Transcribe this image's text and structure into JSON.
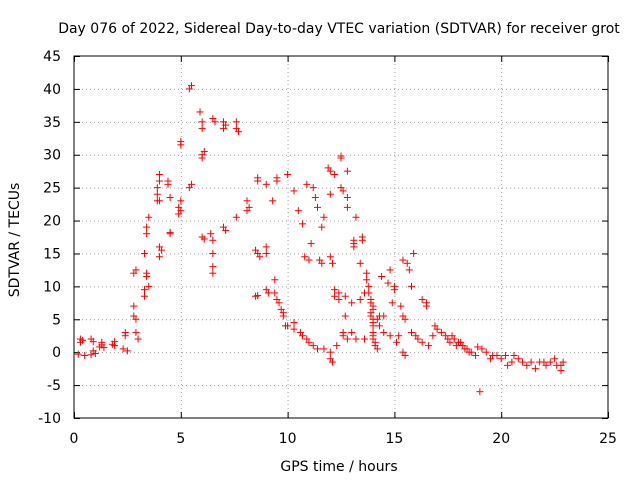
{
  "chart_data": {
    "type": "scatter",
    "title": "Day 076 of 2022, Sidereal Day-to-day VTEC variation (SDTVAR) for receiver grot",
    "xlabel": "GPS time / hours",
    "ylabel": "SDTVAR / TECUs",
    "xlim": [
      0,
      25
    ],
    "ylim": [
      -10,
      45
    ],
    "xticks": [
      0,
      5,
      10,
      15,
      20,
      25
    ],
    "yticks": [
      -10,
      -5,
      0,
      5,
      10,
      15,
      20,
      25,
      30,
      35,
      40,
      45
    ],
    "grid": true,
    "marker": "+",
    "color": "#ff0000",
    "series": [
      {
        "name": "SDTVAR",
        "points": [
          [
            0.2,
            -0.3
          ],
          [
            0.3,
            2.0
          ],
          [
            0.3,
            1.5
          ],
          [
            0.4,
            1.8
          ],
          [
            0.5,
            -0.5
          ],
          [
            0.8,
            -0.4
          ],
          [
            0.8,
            2.0
          ],
          [
            0.9,
            1.6
          ],
          [
            0.9,
            0.2
          ],
          [
            1.0,
            -0.2
          ],
          [
            1.2,
            0.8
          ],
          [
            1.3,
            1.5
          ],
          [
            1.3,
            1.1
          ],
          [
            1.4,
            0.7
          ],
          [
            1.8,
            1.2
          ],
          [
            1.9,
            1.6
          ],
          [
            1.9,
            1.0
          ],
          [
            2.3,
            0.5
          ],
          [
            2.4,
            2.5
          ],
          [
            2.4,
            3.0
          ],
          [
            2.5,
            0.2
          ],
          [
            2.8,
            5.5
          ],
          [
            2.8,
            7.0
          ],
          [
            2.8,
            12.0
          ],
          [
            2.9,
            12.5
          ],
          [
            2.9,
            5.0
          ],
          [
            2.9,
            3.0
          ],
          [
            3.0,
            2.0
          ],
          [
            3.3,
            8.5
          ],
          [
            3.3,
            9.5
          ],
          [
            3.4,
            11.5
          ],
          [
            3.4,
            12.0
          ],
          [
            3.4,
            18.0
          ],
          [
            3.4,
            19.0
          ],
          [
            3.5,
            20.5
          ],
          [
            3.5,
            10.0
          ],
          [
            3.3,
            15.0
          ],
          [
            3.9,
            23.0
          ],
          [
            3.9,
            24.0
          ],
          [
            3.9,
            25.0
          ],
          [
            4.0,
            26.0
          ],
          [
            4.0,
            27.0
          ],
          [
            4.0,
            23.0
          ],
          [
            4.0,
            14.5
          ],
          [
            4.0,
            16.0
          ],
          [
            4.1,
            15.5
          ],
          [
            4.4,
            26.0
          ],
          [
            4.4,
            25.5
          ],
          [
            4.5,
            23.5
          ],
          [
            4.5,
            18.0
          ],
          [
            4.5,
            18.2
          ],
          [
            4.9,
            22.0
          ],
          [
            4.9,
            21.0
          ],
          [
            5.0,
            21.5
          ],
          [
            5.0,
            23.0
          ],
          [
            5.0,
            31.5
          ],
          [
            5.0,
            32.0
          ],
          [
            5.4,
            40.0
          ],
          [
            5.5,
            40.5
          ],
          [
            5.4,
            25.0
          ],
          [
            5.5,
            25.5
          ],
          [
            5.9,
            36.5
          ],
          [
            6.0,
            35.0
          ],
          [
            6.0,
            34.0
          ],
          [
            6.0,
            30.0
          ],
          [
            6.0,
            29.5
          ],
          [
            6.1,
            30.5
          ],
          [
            6.0,
            17.5
          ],
          [
            6.1,
            17.2
          ],
          [
            6.5,
            35.5
          ],
          [
            6.6,
            35.0
          ],
          [
            6.4,
            18.0
          ],
          [
            6.5,
            17.0
          ],
          [
            6.5,
            15.0
          ],
          [
            6.5,
            13.0
          ],
          [
            6.5,
            12.0
          ],
          [
            7.0,
            35.0
          ],
          [
            7.0,
            34.0
          ],
          [
            7.1,
            34.5
          ],
          [
            7.0,
            19.0
          ],
          [
            7.1,
            18.5
          ],
          [
            7.6,
            35.0
          ],
          [
            7.6,
            34.0
          ],
          [
            7.7,
            33.5
          ],
          [
            7.6,
            20.5
          ],
          [
            8.1,
            23.0
          ],
          [
            8.2,
            22.0
          ],
          [
            8.1,
            21.5
          ],
          [
            8.6,
            26.5
          ],
          [
            8.6,
            26.0
          ],
          [
            8.5,
            15.5
          ],
          [
            8.6,
            15.0
          ],
          [
            8.7,
            14.5
          ],
          [
            8.5,
            8.5
          ],
          [
            8.6,
            8.6
          ],
          [
            9.0,
            25.5
          ],
          [
            9.0,
            15.0
          ],
          [
            9.0,
            16.0
          ],
          [
            9.0,
            9.5
          ],
          [
            9.1,
            9.0
          ],
          [
            9.3,
            23.0
          ],
          [
            9.4,
            11.0
          ],
          [
            9.4,
            9.0
          ],
          [
            9.5,
            26.0
          ],
          [
            9.5,
            26.5
          ],
          [
            9.5,
            8.0
          ],
          [
            9.6,
            7.5
          ],
          [
            9.7,
            6.5
          ],
          [
            9.8,
            6.0
          ],
          [
            9.8,
            5.5
          ],
          [
            9.9,
            4.0
          ],
          [
            10.0,
            27.0
          ],
          [
            10.0,
            4.0
          ],
          [
            10.3,
            24.5
          ],
          [
            10.3,
            3.5
          ],
          [
            10.3,
            4.5
          ],
          [
            10.5,
            21.5
          ],
          [
            10.6,
            3.0
          ],
          [
            10.7,
            2.5
          ],
          [
            10.7,
            19.5
          ],
          [
            10.8,
            14.5
          ],
          [
            10.9,
            2.0
          ],
          [
            10.9,
            25.5
          ],
          [
            11.0,
            14.0
          ],
          [
            11.0,
            1.5
          ],
          [
            11.1,
            16.5
          ],
          [
            11.2,
            25.0
          ],
          [
            11.2,
            1.0
          ],
          [
            11.3,
            23.5
          ],
          [
            11.4,
            22.0
          ],
          [
            11.4,
            0.5
          ],
          [
            11.5,
            14.0
          ],
          [
            11.6,
            13.5
          ],
          [
            11.6,
            19.0
          ],
          [
            11.7,
            20.5
          ],
          [
            11.7,
            0.5
          ],
          [
            11.9,
            28.0
          ],
          [
            12.0,
            24.0
          ],
          [
            12.0,
            27.5
          ],
          [
            12.0,
            14.5
          ],
          [
            12.1,
            13.5
          ],
          [
            12.0,
            0.0
          ],
          [
            12.0,
            -1.0
          ],
          [
            12.1,
            -1.5
          ],
          [
            12.2,
            9.5
          ],
          [
            12.2,
            27.0
          ],
          [
            12.2,
            8.5
          ],
          [
            12.3,
            1.0
          ],
          [
            12.4,
            8.0
          ],
          [
            12.4,
            9.0
          ],
          [
            12.5,
            29.5
          ],
          [
            12.5,
            29.8
          ],
          [
            12.5,
            25.0
          ],
          [
            12.6,
            24.5
          ],
          [
            12.6,
            3.0
          ],
          [
            12.6,
            2.5
          ],
          [
            12.7,
            5.5
          ],
          [
            12.7,
            8.5
          ],
          [
            12.8,
            27.5
          ],
          [
            12.8,
            22.0
          ],
          [
            12.8,
            23.5
          ],
          [
            12.8,
            2.0
          ],
          [
            13.0,
            7.5
          ],
          [
            13.0,
            3.0
          ],
          [
            13.1,
            17.0
          ],
          [
            13.1,
            16.5
          ],
          [
            13.1,
            16.0
          ],
          [
            13.2,
            20.5
          ],
          [
            13.2,
            2.0
          ],
          [
            13.4,
            13.5
          ],
          [
            13.4,
            8.0
          ],
          [
            13.5,
            17.0
          ],
          [
            13.5,
            17.5
          ],
          [
            13.6,
            9.0
          ],
          [
            13.6,
            2.0
          ],
          [
            13.7,
            12.0
          ],
          [
            13.7,
            11.0
          ],
          [
            13.8,
            10.0
          ],
          [
            13.8,
            9.0
          ],
          [
            13.9,
            8.0
          ],
          [
            13.9,
            7.5
          ],
          [
            13.9,
            6.0
          ],
          [
            13.9,
            5.5
          ],
          [
            14.0,
            7.0
          ],
          [
            14.0,
            6.5
          ],
          [
            14.0,
            5.0
          ],
          [
            14.0,
            4.5
          ],
          [
            14.0,
            4.0
          ],
          [
            14.0,
            3.0
          ],
          [
            14.0,
            2.5
          ],
          [
            14.0,
            2.0
          ],
          [
            14.1,
            1.5
          ],
          [
            14.1,
            1.0
          ],
          [
            14.2,
            0.5
          ],
          [
            14.2,
            5.0
          ],
          [
            14.3,
            4.0
          ],
          [
            14.3,
            5.5
          ],
          [
            14.4,
            11.5
          ],
          [
            14.5,
            3.0
          ],
          [
            14.5,
            5.5
          ],
          [
            14.7,
            10.5
          ],
          [
            14.8,
            12.5
          ],
          [
            14.8,
            2.5
          ],
          [
            14.9,
            7.5
          ],
          [
            15.0,
            10.0
          ],
          [
            15.0,
            9.5
          ],
          [
            15.1,
            1.5
          ],
          [
            15.2,
            2.5
          ],
          [
            15.3,
            7.0
          ],
          [
            15.4,
            5.5
          ],
          [
            15.5,
            5.0
          ],
          [
            15.4,
            14.0
          ],
          [
            15.4,
            0.0
          ],
          [
            15.5,
            -0.5
          ],
          [
            15.6,
            13.5
          ],
          [
            15.7,
            12.5
          ],
          [
            15.8,
            10.0
          ],
          [
            15.8,
            3.0
          ],
          [
            15.9,
            15.0
          ],
          [
            16.0,
            2.5
          ],
          [
            16.1,
            2.0
          ],
          [
            16.3,
            1.5
          ],
          [
            16.3,
            8.0
          ],
          [
            16.5,
            7.5
          ],
          [
            16.5,
            7.0
          ],
          [
            16.6,
            1.0
          ],
          [
            16.8,
            2.5
          ],
          [
            16.9,
            4.0
          ],
          [
            17.0,
            3.5
          ],
          [
            17.2,
            3.0
          ],
          [
            17.4,
            2.5
          ],
          [
            17.5,
            2.0
          ],
          [
            17.6,
            1.5
          ],
          [
            17.7,
            2.5
          ],
          [
            17.8,
            2.0
          ],
          [
            17.9,
            1.0
          ],
          [
            18.0,
            1.5
          ],
          [
            18.1,
            1.5
          ],
          [
            18.2,
            1.0
          ],
          [
            18.3,
            0.5
          ],
          [
            18.4,
            0.5
          ],
          [
            18.5,
            0.0
          ],
          [
            18.6,
            0.0
          ],
          [
            18.8,
            -0.5
          ],
          [
            18.9,
            0.8
          ],
          [
            19.0,
            -6.0
          ],
          [
            19.1,
            0.5
          ],
          [
            19.3,
            0.0
          ],
          [
            19.5,
            -1.0
          ],
          [
            19.6,
            -0.5
          ],
          [
            19.8,
            -0.5
          ],
          [
            20.0,
            -1.0
          ],
          [
            20.2,
            -0.5
          ],
          [
            20.3,
            -2.0
          ],
          [
            20.5,
            -1.5
          ],
          [
            20.6,
            -0.5
          ],
          [
            20.8,
            -1.0
          ],
          [
            21.0,
            -1.5
          ],
          [
            21.2,
            -2.0
          ],
          [
            21.4,
            -1.5
          ],
          [
            21.6,
            -2.5
          ],
          [
            21.8,
            -1.5
          ],
          [
            22.0,
            -1.5
          ],
          [
            22.1,
            -2.0
          ],
          [
            22.3,
            -1.5
          ],
          [
            22.5,
            -1.0
          ],
          [
            22.6,
            -2.0
          ],
          [
            22.8,
            -2.0
          ],
          [
            22.8,
            -2.8
          ],
          [
            22.9,
            -1.5
          ]
        ]
      }
    ]
  }
}
